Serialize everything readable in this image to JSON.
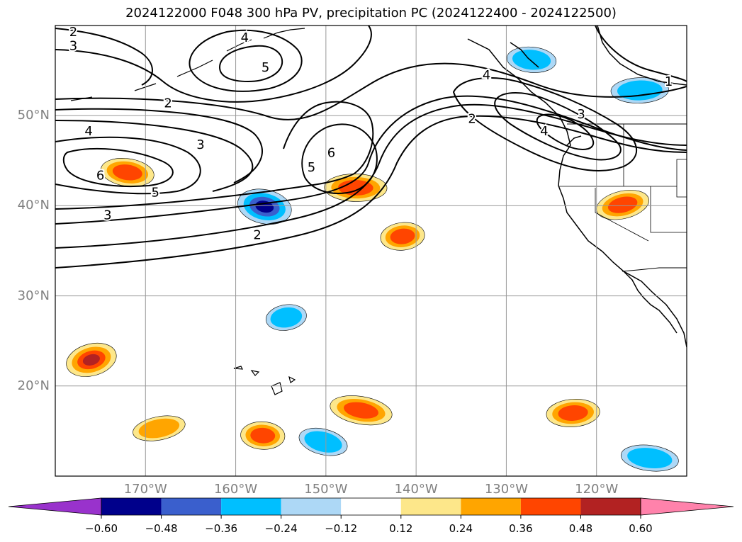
{
  "title": "2024122000 F048 300 hPa PV, precipitation PC (2024122400 - 2024122500)",
  "map": {
    "projection": "PlateCarree",
    "lon_range": [
      -180,
      -110
    ],
    "lat_range": [
      10,
      60
    ],
    "gridlines": true,
    "coastlines": true,
    "lat_ticks": [
      {
        "value": 50,
        "label": "50°N"
      },
      {
        "value": 40,
        "label": "40°N"
      },
      {
        "value": 30,
        "label": "30°N"
      },
      {
        "value": 20,
        "label": "20°N"
      }
    ],
    "lon_ticks": [
      {
        "value": -170,
        "label": "170°W"
      },
      {
        "value": -160,
        "label": "160°W"
      },
      {
        "value": -150,
        "label": "150°W"
      },
      {
        "value": -140,
        "label": "140°W"
      },
      {
        "value": -130,
        "label": "130°W"
      },
      {
        "value": -120,
        "label": "120°W"
      }
    ]
  },
  "pv_contours": {
    "field": "300 hPa PV",
    "levels_labeled": [
      "1",
      "2",
      "3",
      "4",
      "5",
      "6"
    ],
    "labels": [
      {
        "text": "2",
        "lon": -178,
        "lat": 59.2
      },
      {
        "text": "3",
        "lon": -178,
        "lat": 57.7
      },
      {
        "text": "4",
        "lon": -159,
        "lat": 58.6
      },
      {
        "text": "5",
        "lon": -156.7,
        "lat": 55.3
      },
      {
        "text": "2",
        "lon": -167.5,
        "lat": 51.3
      },
      {
        "text": "4",
        "lon": -176.3,
        "lat": 48.2
      },
      {
        "text": "3",
        "lon": -163.9,
        "lat": 46.7
      },
      {
        "text": "6",
        "lon": -175,
        "lat": 43.3
      },
      {
        "text": "5",
        "lon": -168.9,
        "lat": 41.4
      },
      {
        "text": "3",
        "lon": -174.2,
        "lat": 38.9
      },
      {
        "text": "2",
        "lon": -157.6,
        "lat": 36.7
      },
      {
        "text": "6",
        "lon": -149.4,
        "lat": 45.8
      },
      {
        "text": "5",
        "lon": -151.6,
        "lat": 44.2
      },
      {
        "text": "2",
        "lon": -133.8,
        "lat": 49.6
      },
      {
        "text": "4",
        "lon": -132.2,
        "lat": 54.4
      },
      {
        "text": "4",
        "lon": -125.8,
        "lat": 48.2
      },
      {
        "text": "3",
        "lon": -121.7,
        "lat": 50.1
      },
      {
        "text": "1",
        "lon": -112,
        "lat": 53.7
      }
    ]
  },
  "precip_anomaly": {
    "field": "precipitation PC",
    "regions": [
      {
        "sign": "positive",
        "peak": 0.5,
        "lon": -176,
        "lat": 22.9
      },
      {
        "sign": "positive",
        "peak": 0.4,
        "lon": -172,
        "lat": 43.7
      },
      {
        "sign": "positive",
        "peak": 0.4,
        "lon": -146.7,
        "lat": 42
      },
      {
        "sign": "positive",
        "peak": 0.4,
        "lon": -141.5,
        "lat": 36.6
      },
      {
        "sign": "positive",
        "peak": 0.4,
        "lon": -117.1,
        "lat": 40.1
      },
      {
        "sign": "positive",
        "peak": 0.4,
        "lon": -146.1,
        "lat": 17.3
      },
      {
        "sign": "positive",
        "peak": 0.4,
        "lon": -157,
        "lat": 14.5
      },
      {
        "sign": "positive",
        "peak": 0.4,
        "lon": -122.6,
        "lat": 17
      },
      {
        "sign": "positive",
        "peak": 0.3,
        "lon": -168.5,
        "lat": 15.3
      },
      {
        "sign": "negative",
        "peak": -0.55,
        "lon": -156.8,
        "lat": 39.9
      },
      {
        "sign": "negative",
        "peak": -0.35,
        "lon": -127.2,
        "lat": 56.2
      },
      {
        "sign": "negative",
        "peak": -0.35,
        "lon": -115.2,
        "lat": 52.8
      },
      {
        "sign": "negative",
        "peak": -0.35,
        "lon": -154.4,
        "lat": 27.6
      },
      {
        "sign": "negative",
        "peak": -0.35,
        "lon": -150.3,
        "lat": 13.8
      },
      {
        "sign": "negative",
        "peak": -0.35,
        "lon": -114.1,
        "lat": 12
      }
    ]
  },
  "colorbar": {
    "extend": "both",
    "tick_labels": [
      "−0.60",
      "−0.48",
      "−0.36",
      "−0.24",
      "−0.12",
      "0.12",
      "0.24",
      "0.36",
      "0.48",
      "0.60"
    ],
    "colors": [
      "#9932cc",
      "#00008b",
      "#3a5fcd",
      "#00bfff",
      "#add8f6",
      "#ffffff",
      "#fde78a",
      "#ffa500",
      "#ff4500",
      "#b22222",
      "#ff82ab"
    ]
  }
}
